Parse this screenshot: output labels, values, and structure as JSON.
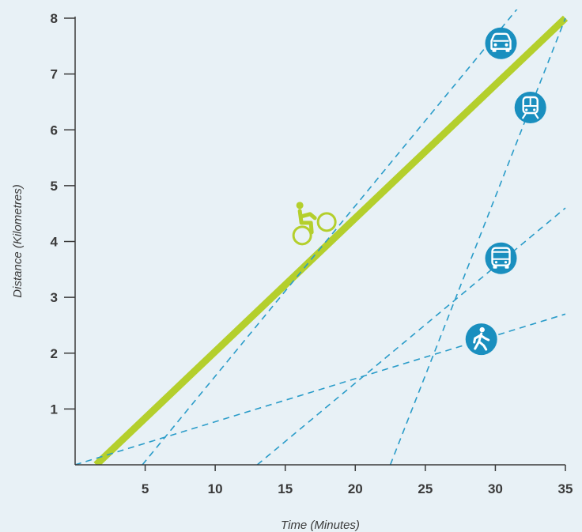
{
  "chart_data": {
    "type": "line",
    "xlabel": "Time (Minutes)",
    "ylabel": "Distance (Kilometres)",
    "xlim": [
      0,
      35
    ],
    "ylim": [
      0,
      8
    ],
    "x_ticks": [
      "5",
      "10",
      "15",
      "20",
      "25",
      "30",
      "35"
    ],
    "y_ticks": [
      "1",
      "2",
      "3",
      "4",
      "5",
      "6",
      "7",
      "8"
    ],
    "grid": false,
    "series": [
      {
        "icon": "bicycle-icon",
        "style": "solid",
        "color": "#b4cf2c",
        "x": [
          1.5,
          35
        ],
        "y": [
          0,
          8
        ]
      },
      {
        "icon": "car-icon",
        "style": "dashed",
        "color": "#2a9cc9",
        "x": [
          4.8,
          32
        ],
        "y": [
          0,
          8.3
        ]
      },
      {
        "icon": "train-icon",
        "style": "dashed",
        "color": "#2a9cc9",
        "x": [
          22.5,
          35
        ],
        "y": [
          0,
          8
        ]
      },
      {
        "icon": "bus-icon",
        "style": "dashed",
        "color": "#2a9cc9",
        "x": [
          13,
          35
        ],
        "y": [
          0,
          4.6
        ]
      },
      {
        "icon": "walking-person-icon",
        "style": "dashed",
        "color": "#2a9cc9",
        "x": [
          0,
          35
        ],
        "y": [
          0,
          2.7
        ]
      }
    ],
    "markers": [
      {
        "icon": "car-icon",
        "x": 30.4,
        "y": 7.55
      },
      {
        "icon": "train-icon",
        "x": 32.5,
        "y": 6.4
      },
      {
        "icon": "bus-icon",
        "x": 30.4,
        "y": 3.7
      },
      {
        "icon": "walking-person-icon",
        "x": 29,
        "y": 2.25
      },
      {
        "icon": "bicycle-icon",
        "x": 17,
        "y": 4.25
      }
    ],
    "colors": {
      "accent_green": "#b4cf2c",
      "accent_blue": "#2a9cc9",
      "icon_circle": "#1a8fbf",
      "axis": "#3a3a3a"
    }
  }
}
